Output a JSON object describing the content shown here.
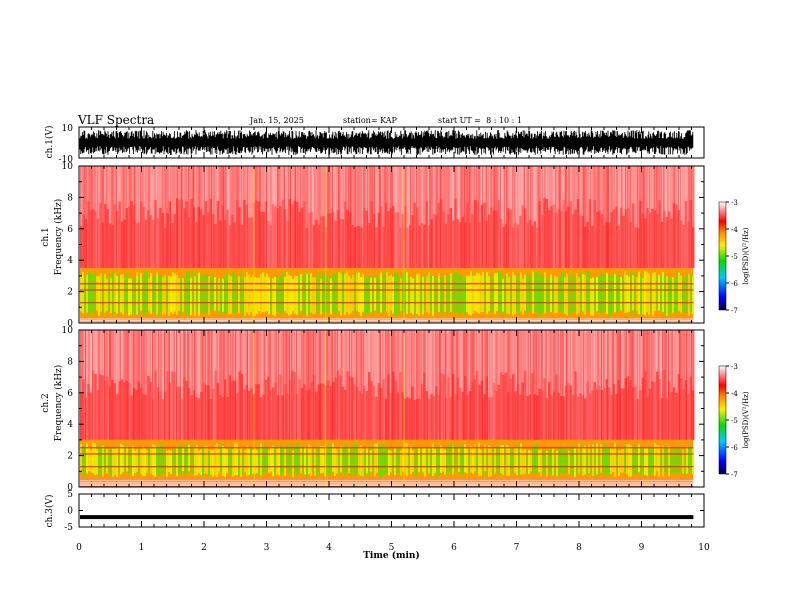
{
  "header": {
    "title": "VLF Spectra",
    "date": "Jan. 15, 2025",
    "station": "station= KAP",
    "start": "start UT =  8 : 10 : 1"
  },
  "colors": {
    "spec_red": "#ff2020",
    "spec_orange": "#ff9900",
    "spec_yellow": "#eeee00",
    "spec_green": "#66dd00",
    "trace": "#000000"
  },
  "chart_data": [
    {
      "type": "line",
      "name": "ch1-waveform",
      "ylabel": "ch.1(V)",
      "ylim": [
        -10,
        10
      ],
      "yticks": [
        "10",
        "-10"
      ],
      "xlim": [
        0,
        10
      ],
      "note_visible": "black dense waveform band spanning roughly -8 to 8 V"
    },
    {
      "type": "heatmap",
      "name": "ch1-spectrogram",
      "ylabel": "ch.1",
      "ylabel2": "Frequency (kHz)",
      "xlim": [
        0,
        9.83
      ],
      "ylim": [
        0,
        10
      ],
      "yticks": [
        "0",
        "2",
        "4",
        "6",
        "8",
        "10"
      ],
      "bands_khz": {
        "intense_low": 0.3,
        "intense_high": 3.5,
        "background_top": 10
      },
      "colorbar": {
        "label": "log(PSD)(V²/Hz)",
        "range": [
          -7,
          -3
        ],
        "ticks": [
          "-3",
          "-4",
          "-5",
          "-6",
          "-7"
        ]
      }
    },
    {
      "type": "heatmap",
      "name": "ch2-spectrogram",
      "ylabel": "ch.2",
      "ylabel2": "Frequency (kHz)",
      "xlim": [
        0,
        9.83
      ],
      "ylim": [
        0,
        10
      ],
      "yticks": [
        "0",
        "2",
        "4",
        "6",
        "8",
        "10"
      ],
      "bands_khz": {
        "intense_low": 0.5,
        "intense_high": 3.0,
        "background_top": 10
      },
      "colorbar": {
        "label": "log(PSD)(V²/Hz)",
        "range": [
          -7,
          -3
        ],
        "ticks": [
          "-3",
          "-4",
          "-5",
          "-6",
          "-7"
        ]
      }
    },
    {
      "type": "line",
      "name": "ch3-waveform",
      "ylabel": "ch.3(V)",
      "ylim": [
        -5,
        5
      ],
      "yticks": [
        "5",
        "0",
        "-5"
      ],
      "xlim": [
        0,
        10
      ],
      "level": -2
    }
  ],
  "xaxis": {
    "label": "Time (min)",
    "ticks": [
      "0",
      "1",
      "2",
      "3",
      "4",
      "5",
      "6",
      "7",
      "8",
      "9",
      "10"
    ]
  }
}
